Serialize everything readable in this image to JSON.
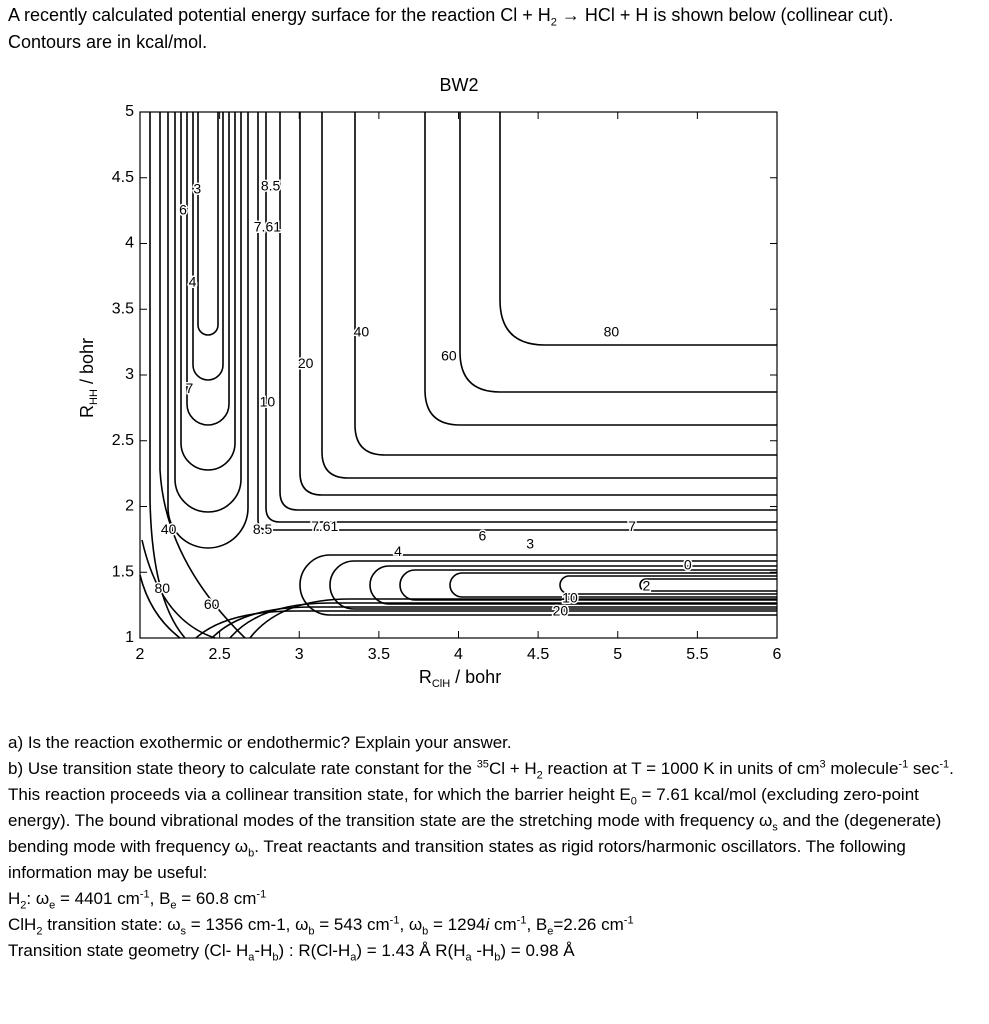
{
  "intro": [
    "A recently calculated potential energy surface for the reaction Cl + H",
    {
      "sub": "2"
    },
    " → HCl + H is shown below (collinear cut).  Contours are in kcal/mol."
  ],
  "chart_data": {
    "type": "contour",
    "title": "BW2",
    "xlabel": {
      "main": "R",
      "sub": "ClH",
      "rest": " / bohr"
    },
    "ylabel": {
      "main": "R",
      "sub": "HH",
      "rest": " / bohr"
    },
    "xlim": [
      2,
      6
    ],
    "ylim": [
      1,
      5
    ],
    "xticks": [
      2,
      2.5,
      3,
      3.5,
      4,
      4.5,
      5,
      5.5,
      6
    ],
    "yticks": [
      1,
      1.5,
      2,
      2.5,
      3,
      3.5,
      4,
      4.5,
      5
    ],
    "contour_labels": [
      {
        "level": 3,
        "x": 2.36,
        "y": 4.41
      },
      {
        "level": 6,
        "x": 2.27,
        "y": 4.25
      },
      {
        "level": 8.5,
        "x": 2.82,
        "y": 4.43
      },
      {
        "level": 7.61,
        "x": 2.8,
        "y": 4.12
      },
      {
        "level": 4,
        "x": 2.33,
        "y": 3.7
      },
      {
        "level": 7,
        "x": 2.31,
        "y": 2.89
      },
      {
        "level": 20,
        "x": 3.04,
        "y": 3.08
      },
      {
        "level": 10,
        "x": 2.8,
        "y": 2.79
      },
      {
        "level": 40,
        "x": 3.39,
        "y": 3.32
      },
      {
        "level": 60,
        "x": 3.94,
        "y": 3.14
      },
      {
        "level": 80,
        "x": 4.96,
        "y": 3.32
      },
      {
        "level": 40,
        "x": 2.18,
        "y": 1.82
      },
      {
        "level": 80,
        "x": 2.14,
        "y": 1.37
      },
      {
        "level": 60,
        "x": 2.45,
        "y": 1.25
      },
      {
        "level": 8.5,
        "x": 2.77,
        "y": 1.82
      },
      {
        "level": 7.61,
        "x": 3.16,
        "y": 1.84
      },
      {
        "level": 4,
        "x": 3.62,
        "y": 1.65
      },
      {
        "level": 6,
        "x": 4.15,
        "y": 1.77
      },
      {
        "level": 3,
        "x": 4.45,
        "y": 1.71
      },
      {
        "level": 7,
        "x": 5.09,
        "y": 1.84
      },
      {
        "level": 2,
        "x": 5.18,
        "y": 1.39
      },
      {
        "level": 0,
        "x": 5.44,
        "y": 1.55
      },
      {
        "level": 10,
        "x": 4.7,
        "y": 1.3
      },
      {
        "level": 20,
        "x": 4.64,
        "y": 1.2
      }
    ]
  },
  "questions": [
    [
      "a) Is the reaction exothermic or endothermic? Explain your answer."
    ],
    [
      "b) Use transition state theory to calculate rate constant for the ",
      {
        "sup": "35"
      },
      "Cl + H",
      {
        "sub": "2"
      },
      " reaction at T = 1000 K in units of cm",
      {
        "sup": "3"
      },
      " molecule",
      {
        "sup": "-1"
      },
      " sec",
      {
        "sup": "-1"
      },
      ".  This reaction proceeds via a collinear transition state, for which the barrier height E",
      {
        "sub": "0"
      },
      " = 7.61 kcal/mol (excluding zero-point energy). The bound vibrational modes of the transition state are the stretching mode with frequency ω",
      {
        "sub": "s"
      },
      " and the (degenerate) bending mode with frequency ω",
      {
        "sub": "b"
      },
      ". Treat reactants and transition states as rigid rotors/harmonic oscillators.  The following information may be useful:"
    ],
    [
      "H",
      {
        "sub": "2"
      },
      ": ω",
      {
        "sub": "e"
      },
      " = 4401 cm",
      {
        "sup": "-1"
      },
      ", B",
      {
        "sub": "e"
      },
      " = 60.8 cm",
      {
        "sup": "-1"
      }
    ],
    [
      "ClH",
      {
        "sub": "2"
      },
      " transition state: ω",
      {
        "sub": "s"
      },
      " = 1356 cm-1, ω",
      {
        "sub": "b"
      },
      " = 543 cm",
      {
        "sup": "-1"
      },
      ", ω",
      {
        "sub": "b"
      },
      " = 1294",
      {
        "i": "i"
      },
      " cm",
      {
        "sup": "-1"
      },
      ",  B",
      {
        "sub": "e"
      },
      "=2.26 cm",
      {
        "sup": "-1"
      }
    ],
    [
      "Transition state geometry (Cl- H",
      {
        "sub": "a"
      },
      "-H",
      {
        "sub": "b"
      },
      ") : R(Cl-H",
      {
        "sub": "a"
      },
      ") = 1.43 Å   R(H",
      {
        "sub": "a"
      },
      " -H",
      {
        "sub": "b"
      },
      ") = 0.98 Å"
    ]
  ]
}
